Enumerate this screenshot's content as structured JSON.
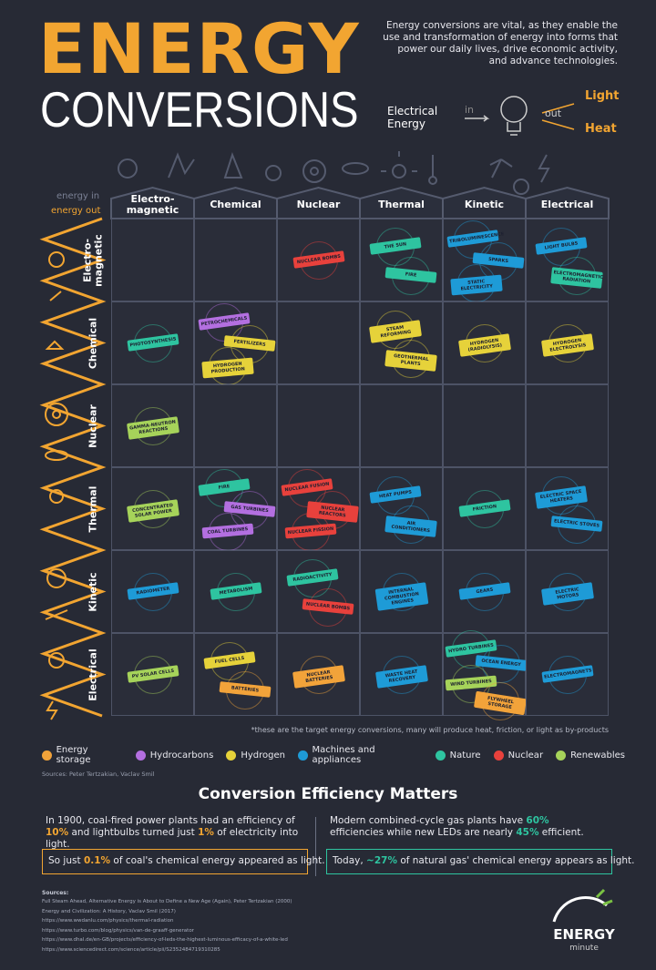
{
  "header": {
    "title_line1": "ENERGY",
    "title_line2": "CONVERSIONS",
    "description": "Energy conversions are vital, as they enable the use and transformation of energy into forms that power our daily lives, drive economic activity, and advance technologies.",
    "diagram": {
      "input": "Electrical Energy",
      "in": "in",
      "out": "out",
      "outputs": [
        "Light",
        "Heat"
      ]
    }
  },
  "axis": {
    "energy_in": "energy in",
    "energy_out": "energy out"
  },
  "columns": [
    "Electro-magnetic",
    "Chemical",
    "Nuclear",
    "Thermal",
    "Kinetic",
    "Electrical"
  ],
  "rows": [
    {
      "label": "Electro-magnetic",
      "cells": [
        [],
        [],
        [
          {
            "label": "Nuclear bombs",
            "color": "#e8413c"
          }
        ],
        [
          {
            "label": "The sun",
            "color": "#2ec4a0"
          },
          {
            "label": "Fire",
            "color": "#2ec4a0"
          }
        ],
        [
          {
            "label": "Triboluminescence",
            "color": "#1e9bd7"
          },
          {
            "label": "Sparks",
            "color": "#1e9bd7"
          },
          {
            "label": "Static electricity",
            "color": "#1e9bd7"
          }
        ],
        [
          {
            "label": "Light bulbs",
            "color": "#1e9bd7"
          },
          {
            "label": "Electromagnetic radiation",
            "color": "#2ec4a0"
          }
        ]
      ]
    },
    {
      "label": "Chemical",
      "cells": [
        [
          {
            "label": "Photosynthesis",
            "color": "#2ec4a0"
          }
        ],
        [
          {
            "label": "Petrochemicals",
            "color": "#b36fe0"
          },
          {
            "label": "Fertilizers",
            "color": "#e6d23a"
          },
          {
            "label": "Hydrogen production",
            "color": "#e6d23a"
          }
        ],
        [],
        [
          {
            "label": "Steam reforming",
            "color": "#e6d23a"
          },
          {
            "label": "Geothermal plants",
            "color": "#e6d23a"
          }
        ],
        [
          {
            "label": "Hydrogen (Radiolysis)",
            "color": "#e6d23a"
          }
        ],
        [
          {
            "label": "Hydrogen electrolysis",
            "color": "#e6d23a"
          }
        ]
      ]
    },
    {
      "label": "Nuclear",
      "cells": [
        [
          {
            "label": "Gamma-neutron reactions",
            "color": "#a6d35a"
          }
        ],
        [],
        [],
        [],
        [],
        []
      ]
    },
    {
      "label": "Thermal",
      "cells": [
        [
          {
            "label": "Concentrated solar power",
            "color": "#a6d35a"
          }
        ],
        [
          {
            "label": "Fire",
            "color": "#2ec4a0"
          },
          {
            "label": "Gas turbines",
            "color": "#b36fe0"
          },
          {
            "label": "Coal turbines",
            "color": "#b36fe0"
          }
        ],
        [
          {
            "label": "Nuclear fusion",
            "color": "#e8413c"
          },
          {
            "label": "Nuclear reactors",
            "color": "#e8413c"
          },
          {
            "label": "Nuclear fission",
            "color": "#e8413c"
          }
        ],
        [
          {
            "label": "Heat pumps",
            "color": "#1e9bd7"
          },
          {
            "label": "Air conditioners",
            "color": "#1e9bd7"
          }
        ],
        [
          {
            "label": "Friction",
            "color": "#2ec4a0"
          }
        ],
        [
          {
            "label": "Electric space heaters",
            "color": "#1e9bd7"
          },
          {
            "label": "Electric stoves",
            "color": "#1e9bd7"
          }
        ]
      ]
    },
    {
      "label": "Kinetic",
      "cells": [
        [
          {
            "label": "Radiometer",
            "color": "#1e9bd7"
          }
        ],
        [
          {
            "label": "Metabolism",
            "color": "#2ec4a0"
          }
        ],
        [
          {
            "label": "Radioactivity",
            "color": "#2ec4a0"
          },
          {
            "label": "Nuclear bombs",
            "color": "#e8413c"
          }
        ],
        [
          {
            "label": "Internal combustion engines",
            "color": "#1e9bd7"
          }
        ],
        [
          {
            "label": "Gears",
            "color": "#1e9bd7"
          }
        ],
        [
          {
            "label": "Electric motors",
            "color": "#1e9bd7"
          }
        ]
      ]
    },
    {
      "label": "Electrical",
      "cells": [
        [
          {
            "label": "PV solar cells",
            "color": "#a6d35a"
          }
        ],
        [
          {
            "label": "Fuel cells",
            "color": "#e6d23a"
          },
          {
            "label": "Batteries",
            "color": "#f2a33a"
          }
        ],
        [
          {
            "label": "Nuclear batteries",
            "color": "#f2a33a"
          }
        ],
        [
          {
            "label": "Waste heat recovery",
            "color": "#1e9bd7"
          }
        ],
        [
          {
            "label": "Hydro turbines",
            "color": "#2ec4a0"
          },
          {
            "label": "Ocean energy",
            "color": "#1e9bd7"
          },
          {
            "label": "Wind turbines",
            "color": "#a6d35a"
          },
          {
            "label": "Flywheel storage",
            "color": "#f2a33a"
          }
        ],
        [
          {
            "label": "Electromagnets",
            "color": "#1e9bd7"
          }
        ]
      ]
    }
  ],
  "footnote": "*these are the target energy conversions, many will produce heat, friction, or light as by-products",
  "legend": [
    {
      "name": "Energy storage",
      "color": "#f2a33a"
    },
    {
      "name": "Hydrocarbons",
      "color": "#b36fe0"
    },
    {
      "name": "Hydrogen",
      "color": "#e6d23a"
    },
    {
      "name": "Machines and appliances",
      "color": "#1e9bd7"
    },
    {
      "name": "Nature",
      "color": "#2ec4a0"
    },
    {
      "name": "Nuclear",
      "color": "#e8413c"
    },
    {
      "name": "Renewables",
      "color": "#a6d35a"
    }
  ],
  "credits": "Sources: Peter Tertzakian, Vaclav Smil",
  "efficiency": {
    "title": "Conversion Efficiency Matters",
    "left": {
      "color": "#f2a531",
      "text": [
        "In 1900, coal-fired power plants had an efficiency of ",
        "10%",
        " and lightbulbs turned just ",
        "1%",
        " of electricity into light."
      ],
      "box": [
        "So just ",
        "0.1%",
        " of coal's chemical energy appeared as light."
      ]
    },
    "right": {
      "color": "#2ec4a0",
      "text": [
        "Modern combined-cycle gas plants have ",
        "60%",
        " efficiencies while new LEDs are nearly ",
        "45%",
        " efficient."
      ],
      "box": [
        "Today, ",
        "~27%",
        " of natural gas' chemical energy appears as light."
      ]
    }
  },
  "sources": {
    "heading": "Sources:",
    "items": [
      "Full Steam Ahead, Alternative Energy is About to Define a New Age (Again), Peter Tertzakian (2000)",
      "Energy and Civilization: A History, Vaclav Smil (2017)",
      "https://www.wwdanlu.com/physics/thermal-radiation",
      "https://www.turbo.com/blog/physics/van-de-graaff-generator",
      "https://www.dhal.de/en-GB/projects/efficiency-of-leds-the-highest-luminous-efficacy-of-a-white-led",
      "https://www.sciencedirect.com/science/article/pii/S2352484719310285"
    ]
  },
  "logo": {
    "line1": "ENERGY",
    "line2": "minute"
  }
}
